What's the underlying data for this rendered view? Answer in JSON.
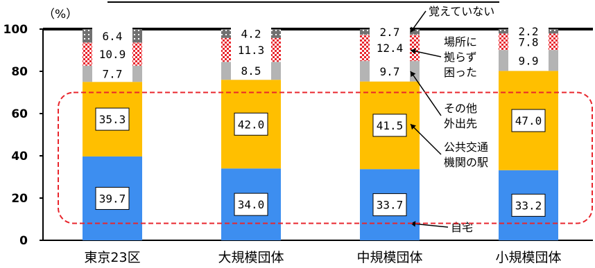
{
  "chart_data": {
    "type": "bar",
    "stacked": true,
    "unit_label": "（%）",
    "categories": [
      "東京23区",
      "大規模団体",
      "中規模団体",
      "小規模団体"
    ],
    "series": [
      {
        "name": "自宅",
        "values": [
          39.7,
          34.0,
          33.7,
          33.2
        ],
        "labels": [
          "39.7",
          "34.0",
          "33.7",
          "33.2"
        ],
        "color": "#3d8ef0"
      },
      {
        "name": "公共交通機関の駅",
        "values": [
          35.3,
          42.0,
          41.5,
          47.0
        ],
        "labels": [
          "35.3",
          "42.0",
          "41.5",
          "47.0"
        ],
        "color": "#ffbf00"
      },
      {
        "name": "その他外出先",
        "values": [
          7.7,
          8.5,
          9.7,
          9.9
        ],
        "labels": [
          "7.7",
          "8.5",
          "9.7",
          "9.9"
        ],
        "color": "#b4b4b4"
      },
      {
        "name": "場所に拠らず困った",
        "values": [
          10.9,
          11.3,
          12.4,
          7.8
        ],
        "labels": [
          "10.9",
          "11.3",
          "12.4",
          "7.8"
        ],
        "color": "#e8252c",
        "pattern": "checker"
      },
      {
        "name": "覚えていない",
        "values": [
          6.4,
          4.2,
          2.7,
          2.2
        ],
        "labels": [
          "6.4",
          "4.2",
          "2.7",
          "2.2"
        ],
        "color": "#6e6e6e",
        "pattern": "dots"
      }
    ],
    "yticks": [
      "0",
      "20",
      "40",
      "60",
      "80",
      "100"
    ],
    "ylim": [
      0,
      100
    ],
    "legend_annotations": [
      {
        "series": "覚えていない",
        "lines": [
          "覚えていない"
        ]
      },
      {
        "series": "場所に拠らず困った",
        "lines": [
          "場所に",
          "拠らず",
          "困った"
        ]
      },
      {
        "series": "その他外出先",
        "lines": [
          "その他",
          "外出先"
        ]
      },
      {
        "series": "公共交通機関の駅",
        "lines": [
          "公共交通",
          "機関の駅"
        ]
      },
      {
        "series": "自宅",
        "lines": [
          "自宅"
        ]
      }
    ],
    "highlight_box": {
      "color": "#e8252c",
      "style": "dashed"
    }
  }
}
